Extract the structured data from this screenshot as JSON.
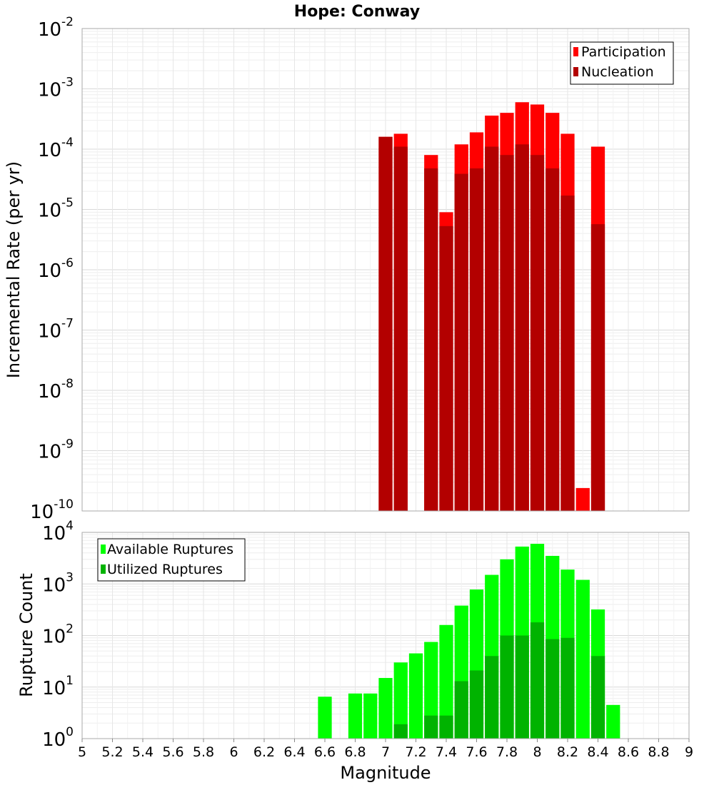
{
  "chart_data": [
    {
      "type": "bar",
      "title": "Hope: Conway",
      "xlabel": "",
      "ylabel": "Incremental Rate (per yr)",
      "yscale": "log",
      "ylim_exp": [
        -10,
        -2
      ],
      "ytick_exps": [
        -10,
        -9,
        -8,
        -7,
        -6,
        -5,
        -4,
        -3,
        -2
      ],
      "grid": true,
      "legend": "top-right",
      "x": [
        7.0,
        7.1,
        7.3,
        7.4,
        7.5,
        7.6,
        7.7,
        7.8,
        7.9,
        8.0,
        8.1,
        8.2,
        8.3,
        8.4
      ],
      "series": [
        {
          "name": "Participation",
          "color": "#ff0000",
          "values": [
            0.00016,
            0.00018,
            8e-05,
            9e-06,
            0.00012,
            0.00019,
            0.00036,
            0.0004,
            0.0006,
            0.00055,
            0.0004,
            0.00018,
            2.4e-10,
            0.00011
          ]
        },
        {
          "name": "Nucleation",
          "color": "#b30000",
          "values": [
            0.00016,
            0.00011,
            4.8e-05,
            5.3e-06,
            3.9e-05,
            4.8e-05,
            0.00011,
            8e-05,
            0.00012,
            8e-05,
            4.8e-05,
            1.7e-05,
            null,
            5.7e-06
          ]
        }
      ]
    },
    {
      "type": "bar",
      "title": "",
      "xlabel": "Magnitude",
      "ylabel": "Rupture Count",
      "yscale": "log",
      "ylim_exp": [
        0,
        4
      ],
      "ytick_exps": [
        0,
        1,
        2,
        3,
        4
      ],
      "xlim": [
        5,
        9
      ],
      "xticks": [
        "5",
        "5.2",
        "5.4",
        "5.6",
        "5.8",
        "6",
        "6.2",
        "6.4",
        "6.6",
        "6.8",
        "7",
        "7.2",
        "7.4",
        "7.6",
        "7.8",
        "8",
        "8.2",
        "8.4",
        "8.6",
        "8.8",
        "9"
      ],
      "grid": true,
      "legend": "top-left",
      "x": [
        6.6,
        6.8,
        6.9,
        7.0,
        7.1,
        7.2,
        7.3,
        7.4,
        7.5,
        7.6,
        7.7,
        7.8,
        7.9,
        8.0,
        8.1,
        8.2,
        8.3,
        8.4,
        8.5
      ],
      "series": [
        {
          "name": "Available Ruptures",
          "color": "#00ff00",
          "values": [
            6.5,
            7.5,
            7.5,
            15,
            30,
            45,
            75,
            160,
            380,
            780,
            1500,
            3000,
            5300,
            6000,
            3500,
            1900,
            1200,
            320,
            4.5
          ]
        },
        {
          "name": "Utilized Ruptures",
          "color": "#00b300",
          "values": [
            null,
            null,
            null,
            1,
            1.9,
            null,
            2.8,
            2.8,
            13,
            21,
            40,
            100,
            100,
            180,
            85,
            90,
            1,
            40,
            null
          ]
        }
      ]
    }
  ]
}
